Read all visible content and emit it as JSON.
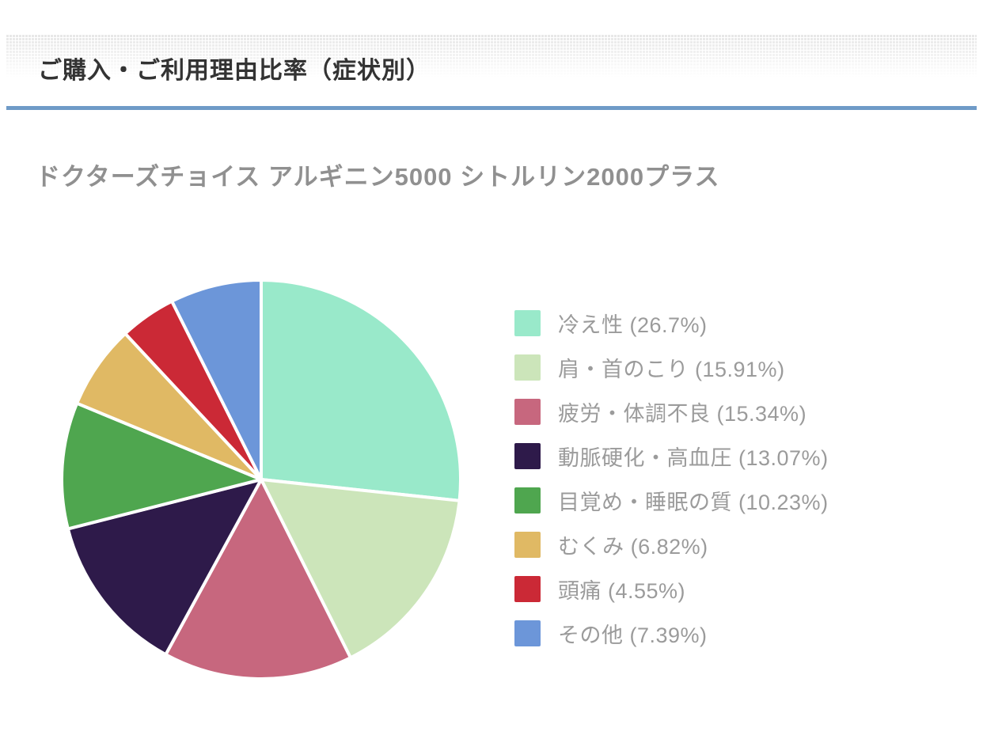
{
  "header": {
    "title": "ご購入・ご利用理由比率（症状別）",
    "accent_color": "#6f9bc7",
    "title_color": "#333333"
  },
  "chart_data": {
    "type": "pie",
    "title": "ご購入・ご利用理由比率（症状別）",
    "subtitle": "ドクターズチョイス アルギニン5000 シトルリン2000プラス",
    "start_angle": "top",
    "direction": "clockwise",
    "legend_position": "right",
    "legend_format": "{label} ({value}%)",
    "slice_gap_color": "#ffffff",
    "slices": [
      {
        "label": "冷え性",
        "value": 26.7,
        "color": "#99e9ca"
      },
      {
        "label": "肩・首のこり",
        "value": 15.91,
        "color": "#cce5ba"
      },
      {
        "label": "疲労・体調不良",
        "value": 15.34,
        "color": "#c7677e"
      },
      {
        "label": "動脈硬化・高血圧",
        "value": 13.07,
        "color": "#2e1a4a"
      },
      {
        "label": "目覚め・睡眠の質",
        "value": 10.23,
        "color": "#4fa64f"
      },
      {
        "label": "むくみ",
        "value": 6.82,
        "color": "#e0b964"
      },
      {
        "label": "頭痛",
        "value": 4.55,
        "color": "#cb2936"
      },
      {
        "label": "その他",
        "value": 7.39,
        "color": "#6c96d9"
      }
    ]
  }
}
